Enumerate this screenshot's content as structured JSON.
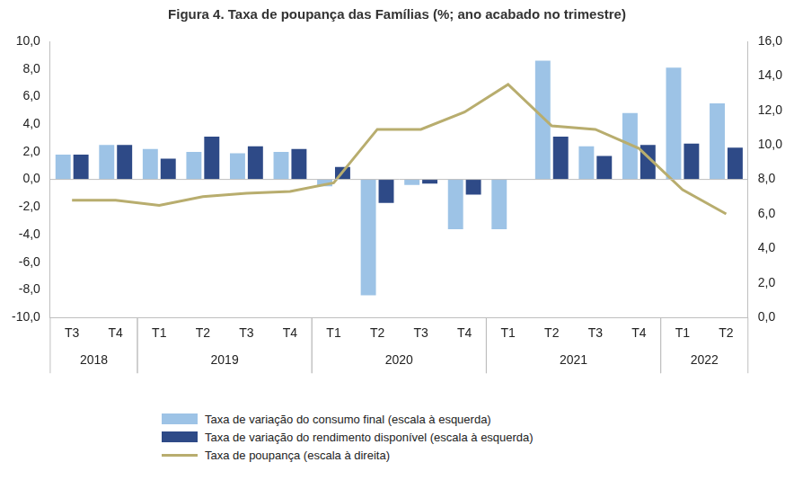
{
  "chart_data": {
    "type": "bar",
    "title": "Figura 4. Taxa de poupança das Famílias (%; ano acabado no trimestre)",
    "categories": [
      "T3",
      "T4",
      "T1",
      "T2",
      "T3",
      "T4",
      "T1",
      "T2",
      "T3",
      "T4",
      "T1",
      "T2",
      "T3",
      "T4",
      "T1",
      "T2"
    ],
    "category_years": [
      "2018",
      "2018",
      "2019",
      "2019",
      "2019",
      "2019",
      "2020",
      "2020",
      "2020",
      "2020",
      "2021",
      "2021",
      "2021",
      "2021",
      "2022",
      "2022"
    ],
    "series": [
      {
        "name": "Taxa de variação do consumo final (escala à esquerda)",
        "type": "bar",
        "color": "#9dc3e6",
        "values": [
          1.8,
          2.5,
          2.2,
          2.0,
          1.9,
          2.0,
          -0.5,
          -8.4,
          -0.4,
          -3.6,
          -3.6,
          8.6,
          2.4,
          4.8,
          8.1,
          5.5
        ]
      },
      {
        "name": "Taxa de variação do rendimento disponível (escala à esquerda)",
        "type": "bar",
        "color": "#2e4a87",
        "values": [
          1.8,
          2.5,
          1.5,
          3.1,
          2.4,
          2.2,
          0.9,
          -1.7,
          -0.3,
          -1.1,
          0.0,
          3.1,
          1.7,
          2.5,
          2.6,
          2.3
        ]
      },
      {
        "name": "Taxa de poupança (escala à direita)",
        "type": "line",
        "color": "#b8ad6e",
        "axis": "y2",
        "values": [
          6.8,
          6.8,
          6.5,
          7.0,
          7.2,
          7.3,
          7.8,
          10.9,
          10.9,
          11.9,
          13.5,
          11.1,
          10.9,
          9.8,
          7.4,
          6.0
        ]
      }
    ],
    "ylim": [
      -10,
      10
    ],
    "yticks": [
      {
        "value": -10,
        "label": "-10,0"
      },
      {
        "value": -8,
        "label": "-8,0"
      },
      {
        "value": -6,
        "label": "-6,0"
      },
      {
        "value": -4,
        "label": "-4,0"
      },
      {
        "value": -2,
        "label": "-2,0"
      },
      {
        "value": 0,
        "label": "0,0"
      },
      {
        "value": 2,
        "label": "2,0"
      },
      {
        "value": 4,
        "label": "4,0"
      },
      {
        "value": 6,
        "label": "6,0"
      },
      {
        "value": 8,
        "label": "8,0"
      },
      {
        "value": 10,
        "label": "10,0"
      }
    ],
    "y2lim": [
      0,
      16
    ],
    "y2ticks": [
      {
        "value": 0,
        "label": "0,0"
      },
      {
        "value": 2,
        "label": "2,0"
      },
      {
        "value": 4,
        "label": "4,0"
      },
      {
        "value": 6,
        "label": "6,0"
      },
      {
        "value": 8,
        "label": "8,0"
      },
      {
        "value": 10,
        "label": "10,0"
      },
      {
        "value": 12,
        "label": "12,0"
      },
      {
        "value": 14,
        "label": "14,0"
      },
      {
        "value": 16,
        "label": "16,0"
      }
    ],
    "grid": false,
    "legend": "bottom"
  }
}
